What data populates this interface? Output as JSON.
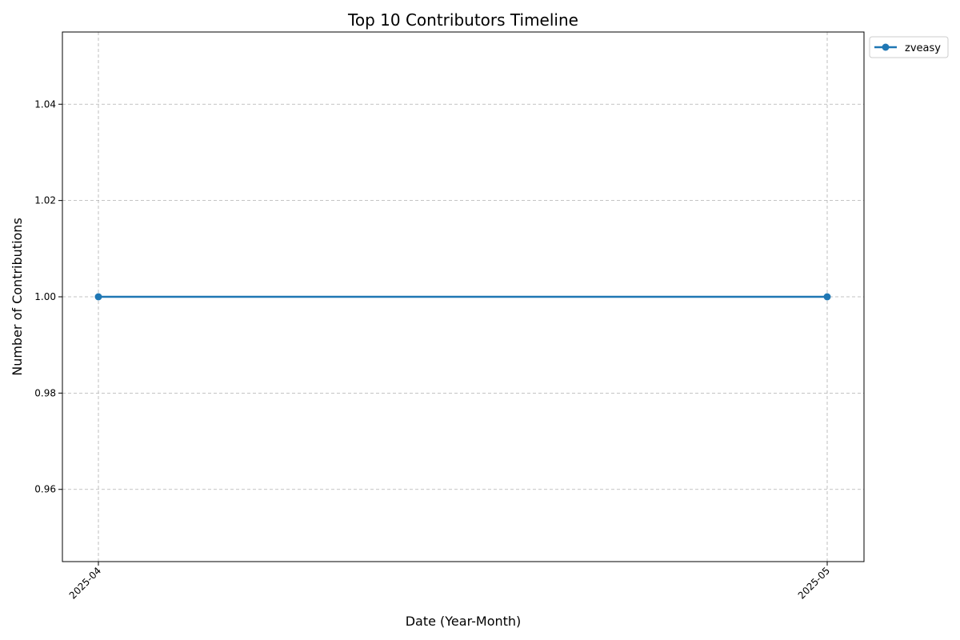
{
  "chart_data": {
    "type": "line",
    "title": "Top 10 Contributors Timeline",
    "xlabel": "Date (Year-Month)",
    "ylabel": "Number of Contributions",
    "x": [
      "2025-04",
      "2025-05"
    ],
    "ylim": [
      0.945,
      1.055
    ],
    "yticks": [
      "0.96",
      "0.98",
      "1.00",
      "1.02",
      "1.04"
    ],
    "grid": true,
    "legend_position": "outside-top-right",
    "series": [
      {
        "name": "zveasy",
        "color": "#1f77b4",
        "values": [
          1.0,
          1.0
        ]
      }
    ]
  }
}
